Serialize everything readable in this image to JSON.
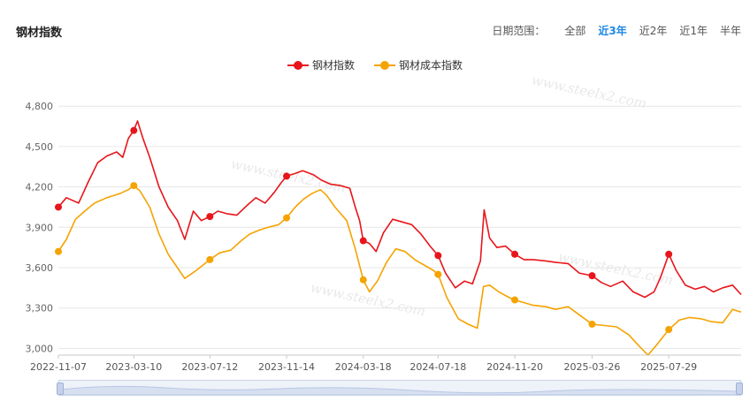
{
  "header": {
    "title": "钢材指数",
    "range_label": "日期范围：",
    "range_options": [
      "全部",
      "近3年",
      "近2年",
      "近1年",
      "半年"
    ],
    "active_range": "近3年"
  },
  "watermark": "www.steelx2.com",
  "colors": {
    "steel": "#e8151b",
    "cost": "#f5a300",
    "active": "#1e88e5"
  },
  "chart_data": {
    "type": "line",
    "title": "",
    "xlabel": "",
    "ylabel": "",
    "x_ticks": [
      "2022-11-07",
      "2023-03-10",
      "2023-07-12",
      "2023-11-14",
      "2024-03-18",
      "2024-07-18",
      "2024-11-20",
      "2025-03-26",
      "2025-07-29"
    ],
    "y_ticks": [
      3000,
      3300,
      3600,
      3900,
      4200,
      4500,
      4800
    ],
    "y_tick_labels": [
      "3,000",
      "3,300",
      "3,600",
      "3,900",
      "4,200",
      "4,500",
      "4,800"
    ],
    "ylim": [
      2950,
      4900
    ],
    "xlim": [
      "2022-11-07",
      "2025-11-24"
    ],
    "grid": "horizontal",
    "legend": "top-center",
    "series": [
      {
        "name": "钢材指数",
        "color": "#e8151b",
        "points": [
          [
            "2022-11-07",
            4050
          ],
          [
            "2022-11-20",
            4120
          ],
          [
            "2022-12-10",
            4080
          ],
          [
            "2022-12-25",
            4230
          ],
          [
            "2023-01-10",
            4380
          ],
          [
            "2023-01-25",
            4430
          ],
          [
            "2023-02-10",
            4460
          ],
          [
            "2023-02-20",
            4420
          ],
          [
            "2023-03-01",
            4560
          ],
          [
            "2023-03-10",
            4620
          ],
          [
            "2023-03-16",
            4690
          ],
          [
            "2023-03-25",
            4560
          ],
          [
            "2023-04-05",
            4420
          ],
          [
            "2023-04-20",
            4200
          ],
          [
            "2023-05-05",
            4050
          ],
          [
            "2023-05-20",
            3950
          ],
          [
            "2023-06-01",
            3810
          ],
          [
            "2023-06-15",
            4020
          ],
          [
            "2023-06-28",
            3950
          ],
          [
            "2023-07-12",
            3980
          ],
          [
            "2023-07-25",
            4020
          ],
          [
            "2023-08-10",
            4000
          ],
          [
            "2023-08-25",
            3990
          ],
          [
            "2023-09-10",
            4060
          ],
          [
            "2023-09-25",
            4120
          ],
          [
            "2023-10-10",
            4080
          ],
          [
            "2023-10-25",
            4160
          ],
          [
            "2023-11-05",
            4230
          ],
          [
            "2023-11-14",
            4280
          ],
          [
            "2023-11-28",
            4300
          ],
          [
            "2023-12-10",
            4320
          ],
          [
            "2023-12-28",
            4290
          ],
          [
            "2024-01-10",
            4250
          ],
          [
            "2024-01-25",
            4220
          ],
          [
            "2024-02-10",
            4210
          ],
          [
            "2024-02-25",
            4190
          ],
          [
            "2024-03-05",
            4050
          ],
          [
            "2024-03-12",
            3950
          ],
          [
            "2024-03-18",
            3800
          ],
          [
            "2024-03-28",
            3780
          ],
          [
            "2024-04-08",
            3720
          ],
          [
            "2024-04-20",
            3860
          ],
          [
            "2024-05-05",
            3960
          ],
          [
            "2024-05-20",
            3940
          ],
          [
            "2024-06-05",
            3920
          ],
          [
            "2024-06-20",
            3850
          ],
          [
            "2024-07-05",
            3760
          ],
          [
            "2024-07-18",
            3690
          ],
          [
            "2024-07-30",
            3560
          ],
          [
            "2024-08-15",
            3450
          ],
          [
            "2024-08-30",
            3500
          ],
          [
            "2024-09-12",
            3480
          ],
          [
            "2024-09-25",
            3650
          ],
          [
            "2024-10-01",
            4030
          ],
          [
            "2024-10-10",
            3820
          ],
          [
            "2024-10-22",
            3750
          ],
          [
            "2024-11-05",
            3760
          ],
          [
            "2024-11-20",
            3700
          ],
          [
            "2024-12-05",
            3660
          ],
          [
            "2024-12-20",
            3660
          ],
          [
            "2025-01-10",
            3650
          ],
          [
            "2025-01-25",
            3640
          ],
          [
            "2025-02-15",
            3630
          ],
          [
            "2025-03-05",
            3560
          ],
          [
            "2025-03-26",
            3540
          ],
          [
            "2025-04-10",
            3490
          ],
          [
            "2025-04-25",
            3460
          ],
          [
            "2025-05-15",
            3500
          ],
          [
            "2025-06-01",
            3420
          ],
          [
            "2025-06-20",
            3380
          ],
          [
            "2025-07-05",
            3420
          ],
          [
            "2025-07-15",
            3520
          ],
          [
            "2025-07-29",
            3700
          ],
          [
            "2025-08-10",
            3580
          ],
          [
            "2025-08-25",
            3470
          ],
          [
            "2025-09-10",
            3440
          ],
          [
            "2025-09-25",
            3460
          ],
          [
            "2025-10-10",
            3420
          ],
          [
            "2025-10-25",
            3450
          ],
          [
            "2025-11-10",
            3470
          ],
          [
            "2025-11-24",
            3400
          ]
        ],
        "markers": [
          [
            "2022-11-07",
            4050
          ],
          [
            "2023-03-10",
            4620
          ],
          [
            "2023-07-12",
            3980
          ],
          [
            "2023-11-14",
            4280
          ],
          [
            "2024-03-18",
            3800
          ],
          [
            "2024-07-18",
            3690
          ],
          [
            "2024-11-20",
            3700
          ],
          [
            "2025-03-26",
            3540
          ],
          [
            "2025-07-29",
            3700
          ]
        ]
      },
      {
        "name": "钢材成本指数",
        "color": "#f5a300",
        "points": [
          [
            "2022-11-07",
            3720
          ],
          [
            "2022-11-20",
            3810
          ],
          [
            "2022-12-05",
            3960
          ],
          [
            "2022-12-20",
            4020
          ],
          [
            "2023-01-05",
            4080
          ],
          [
            "2023-01-25",
            4120
          ],
          [
            "2023-02-15",
            4150
          ],
          [
            "2023-03-01",
            4180
          ],
          [
            "2023-03-10",
            4210
          ],
          [
            "2023-03-20",
            4170
          ],
          [
            "2023-04-05",
            4050
          ],
          [
            "2023-04-20",
            3850
          ],
          [
            "2023-05-05",
            3700
          ],
          [
            "2023-05-20",
            3600
          ],
          [
            "2023-06-01",
            3520
          ],
          [
            "2023-06-20",
            3580
          ],
          [
            "2023-07-12",
            3660
          ],
          [
            "2023-07-28",
            3710
          ],
          [
            "2023-08-15",
            3730
          ],
          [
            "2023-09-01",
            3800
          ],
          [
            "2023-09-15",
            3850
          ],
          [
            "2023-10-01",
            3880
          ],
          [
            "2023-10-15",
            3900
          ],
          [
            "2023-11-01",
            3920
          ],
          [
            "2023-11-14",
            3970
          ],
          [
            "2023-11-28",
            4050
          ],
          [
            "2023-12-12",
            4110
          ],
          [
            "2023-12-25",
            4150
          ],
          [
            "2024-01-08",
            4180
          ],
          [
            "2024-01-18",
            4140
          ],
          [
            "2024-02-01",
            4050
          ],
          [
            "2024-02-20",
            3950
          ],
          [
            "2024-03-05",
            3740
          ],
          [
            "2024-03-18",
            3510
          ],
          [
            "2024-03-28",
            3420
          ],
          [
            "2024-04-10",
            3500
          ],
          [
            "2024-04-25",
            3640
          ],
          [
            "2024-05-10",
            3740
          ],
          [
            "2024-05-25",
            3720
          ],
          [
            "2024-06-10",
            3660
          ],
          [
            "2024-06-25",
            3620
          ],
          [
            "2024-07-10",
            3580
          ],
          [
            "2024-07-18",
            3550
          ],
          [
            "2024-08-01",
            3380
          ],
          [
            "2024-08-20",
            3220
          ],
          [
            "2024-09-05",
            3180
          ],
          [
            "2024-09-20",
            3150
          ],
          [
            "2024-09-30",
            3460
          ],
          [
            "2024-10-10",
            3470
          ],
          [
            "2024-10-25",
            3420
          ],
          [
            "2024-11-10",
            3380
          ],
          [
            "2024-11-20",
            3360
          ],
          [
            "2024-12-05",
            3340
          ],
          [
            "2024-12-20",
            3320
          ],
          [
            "2025-01-10",
            3310
          ],
          [
            "2025-01-25",
            3290
          ],
          [
            "2025-02-15",
            3310
          ],
          [
            "2025-03-05",
            3250
          ],
          [
            "2025-03-26",
            3180
          ],
          [
            "2025-04-15",
            3170
          ],
          [
            "2025-05-05",
            3160
          ],
          [
            "2025-05-25",
            3100
          ],
          [
            "2025-06-10",
            3020
          ],
          [
            "2025-06-25",
            2950
          ],
          [
            "2025-07-10",
            3030
          ],
          [
            "2025-07-29",
            3140
          ],
          [
            "2025-08-15",
            3210
          ],
          [
            "2025-09-01",
            3230
          ],
          [
            "2025-09-20",
            3220
          ],
          [
            "2025-10-05",
            3200
          ],
          [
            "2025-10-25",
            3190
          ],
          [
            "2025-11-10",
            3290
          ],
          [
            "2025-11-24",
            3270
          ]
        ],
        "markers": [
          [
            "2022-11-07",
            3720
          ],
          [
            "2023-03-10",
            4210
          ],
          [
            "2023-07-12",
            3660
          ],
          [
            "2023-11-14",
            3970
          ],
          [
            "2024-03-18",
            3510
          ],
          [
            "2024-07-18",
            3550
          ],
          [
            "2024-11-20",
            3360
          ],
          [
            "2025-03-26",
            3180
          ],
          [
            "2025-07-29",
            3140
          ]
        ]
      }
    ]
  }
}
